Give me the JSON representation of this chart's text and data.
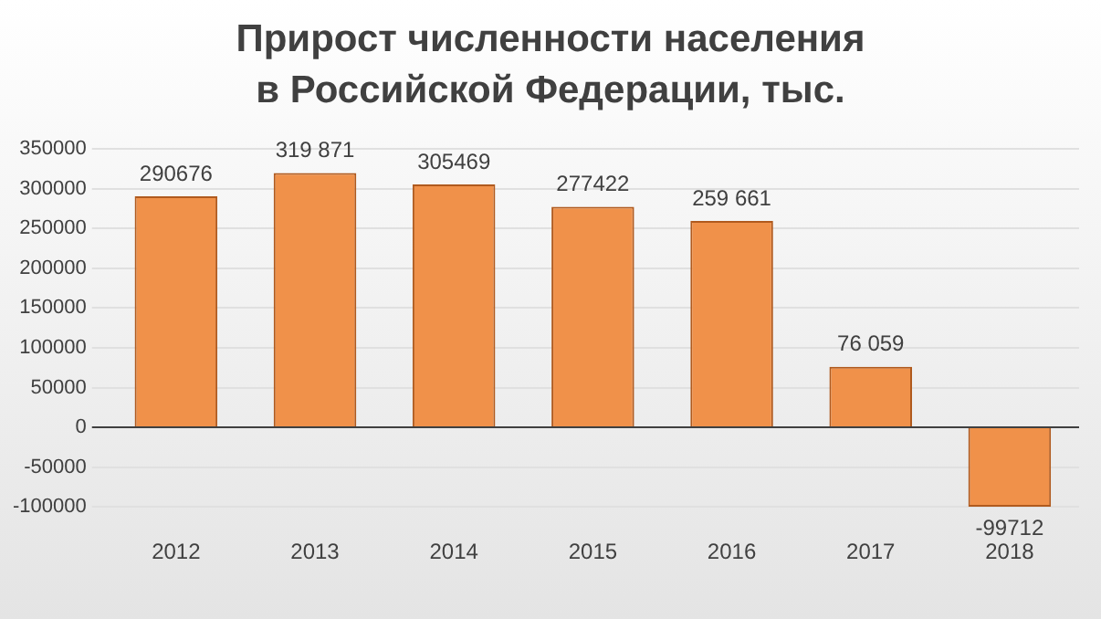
{
  "chart_data": {
    "type": "bar",
    "title": "Прирост численности населения в Российской Федерации, тыс.",
    "categories": [
      "2012",
      "2013",
      "2014",
      "2015",
      "2016",
      "2017",
      "2018"
    ],
    "values": [
      290676,
      319871,
      305469,
      277422,
      259661,
      76059,
      -99712
    ],
    "value_labels": [
      "290676",
      "319 871",
      "305469",
      "277422",
      "259 661",
      "76 059",
      "-99712"
    ],
    "color": "#f0914a",
    "ylim": [
      -100000,
      350000
    ],
    "yticks": [
      -100000,
      -50000,
      0,
      50000,
      100000,
      150000,
      200000,
      250000,
      300000,
      350000
    ],
    "grid": "y",
    "legend": false
  }
}
